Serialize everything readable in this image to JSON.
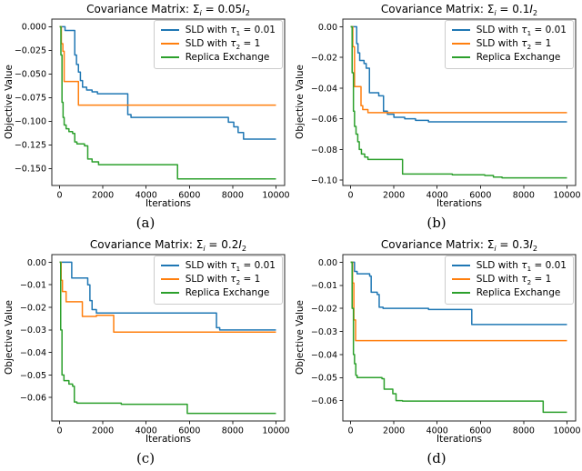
{
  "figure": {
    "xlabel": "Iterations",
    "ylabel": "Objective Value",
    "background": "#ffffff",
    "spine_color": "#262626",
    "legend": [
      {
        "key": "sld-tau1",
        "color": "#1f77b4",
        "name": "SLD with τ1 = 0.01",
        "parts": [
          {
            "t": "SLD with "
          },
          {
            "t": "τ",
            "it": true
          },
          {
            "t": "1",
            "sub": true
          },
          {
            "t": " = 0.01"
          }
        ]
      },
      {
        "key": "sld-tau2",
        "color": "#ff7f0e",
        "name": "SLD with τ2 = 1",
        "parts": [
          {
            "t": "SLD with "
          },
          {
            "t": "τ",
            "it": true
          },
          {
            "t": "2",
            "sub": true
          },
          {
            "t": " = 1"
          }
        ]
      },
      {
        "key": "replica-exchange",
        "color": "#2ca02c",
        "name": "Replica Exchange",
        "parts": [
          {
            "t": "Replica Exchange"
          }
        ]
      }
    ]
  },
  "chart_data": [
    {
      "type": "line",
      "caption": "(a)",
      "title_text": "Covariance Matrix: Σi = 0.05I2",
      "title_parts": [
        {
          "t": "Covariance Matrix: "
        },
        {
          "t": "Σ"
        },
        {
          "t": "i",
          "sub": true,
          "it": true
        },
        {
          "t": " = 0.05"
        },
        {
          "t": "I",
          "it": true
        },
        {
          "t": "2",
          "sub": true
        }
      ],
      "xlabel": "Iterations",
      "ylabel": "Objective Value",
      "legend_position": "upper right",
      "grid": false,
      "xlim": [
        -360,
        10400
      ],
      "ylim": [
        -0.168,
        0.008
      ],
      "x_end": 10000,
      "xticks": [
        {
          "v": 0,
          "label": "0"
        },
        {
          "v": 2000,
          "label": "2000"
        },
        {
          "v": 4000,
          "label": "4000"
        },
        {
          "v": 6000,
          "label": "6000"
        },
        {
          "v": 8000,
          "label": "8000"
        },
        {
          "v": 10000,
          "label": "10000"
        }
      ],
      "yticks": [
        {
          "v": 0,
          "label": "0.000"
        },
        {
          "v": -0.025,
          "label": "−0.025"
        },
        {
          "v": -0.05,
          "label": "−0.050"
        },
        {
          "v": -0.075,
          "label": "−0.075"
        },
        {
          "v": -0.1,
          "label": "−0.100"
        },
        {
          "v": -0.125,
          "label": "−0.125"
        },
        {
          "v": -0.15,
          "label": "−0.150"
        }
      ],
      "series": [
        {
          "key": "sld-tau1",
          "color": "#1f77b4",
          "points": [
            [
              0,
              0
            ],
            [
              250,
              -0.004
            ],
            [
              700,
              -0.03
            ],
            [
              780,
              -0.04
            ],
            [
              870,
              -0.048
            ],
            [
              960,
              -0.057
            ],
            [
              1060,
              -0.064
            ],
            [
              1250,
              -0.067
            ],
            [
              1500,
              -0.069
            ],
            [
              1750,
              -0.071
            ],
            [
              3150,
              -0.093
            ],
            [
              3300,
              -0.096
            ],
            [
              7800,
              -0.101
            ],
            [
              8050,
              -0.106
            ],
            [
              8250,
              -0.112
            ],
            [
              8500,
              -0.119
            ]
          ]
        },
        {
          "key": "sld-tau2",
          "color": "#ff7f0e",
          "points": [
            [
              0,
              0
            ],
            [
              80,
              -0.018
            ],
            [
              150,
              -0.026
            ],
            [
              210,
              -0.058
            ],
            [
              870,
              -0.083
            ]
          ]
        },
        {
          "key": "replica-exchange",
          "color": "#2ca02c",
          "points": [
            [
              0,
              0
            ],
            [
              60,
              -0.03
            ],
            [
              110,
              -0.08
            ],
            [
              160,
              -0.096
            ],
            [
              210,
              -0.104
            ],
            [
              300,
              -0.108
            ],
            [
              430,
              -0.111
            ],
            [
              600,
              -0.113
            ],
            [
              700,
              -0.122
            ],
            [
              800,
              -0.124
            ],
            [
              1150,
              -0.126
            ],
            [
              1300,
              -0.14
            ],
            [
              1500,
              -0.143
            ],
            [
              1800,
              -0.146
            ],
            [
              5450,
              -0.161
            ]
          ]
        }
      ]
    },
    {
      "type": "line",
      "caption": "(b)",
      "title_text": "Covariance Matrix: Σi = 0.1I2",
      "title_parts": [
        {
          "t": "Covariance Matrix: "
        },
        {
          "t": "Σ"
        },
        {
          "t": "i",
          "sub": true,
          "it": true
        },
        {
          "t": " = 0.1"
        },
        {
          "t": "I",
          "it": true
        },
        {
          "t": "2",
          "sub": true
        }
      ],
      "xlabel": "Iterations",
      "ylabel": "Objective Value",
      "legend_position": "upper right",
      "grid": false,
      "xlim": [
        -360,
        10400
      ],
      "ylim": [
        -0.1035,
        0.005
      ],
      "x_end": 10000,
      "xticks": [
        {
          "v": 0,
          "label": "0"
        },
        {
          "v": 2000,
          "label": "2000"
        },
        {
          "v": 4000,
          "label": "4000"
        },
        {
          "v": 6000,
          "label": "6000"
        },
        {
          "v": 8000,
          "label": "8000"
        },
        {
          "v": 10000,
          "label": "10000"
        }
      ],
      "yticks": [
        {
          "v": 0,
          "label": "0.00"
        },
        {
          "v": -0.02,
          "label": "−0.02"
        },
        {
          "v": -0.04,
          "label": "−0.04"
        },
        {
          "v": -0.06,
          "label": "−0.06"
        },
        {
          "v": -0.08,
          "label": "−0.08"
        },
        {
          "v": -0.1,
          "label": "−0.10"
        }
      ],
      "series": [
        {
          "key": "sld-tau1",
          "color": "#1f77b4",
          "points": [
            [
              0,
              0
            ],
            [
              280,
              -0.011
            ],
            [
              340,
              -0.017
            ],
            [
              420,
              -0.022
            ],
            [
              620,
              -0.024
            ],
            [
              720,
              -0.027
            ],
            [
              870,
              -0.043
            ],
            [
              1300,
              -0.045
            ],
            [
              1520,
              -0.055
            ],
            [
              1700,
              -0.057
            ],
            [
              2000,
              -0.059
            ],
            [
              2500,
              -0.06
            ],
            [
              3000,
              -0.061
            ],
            [
              3600,
              -0.062
            ]
          ]
        },
        {
          "key": "sld-tau2",
          "color": "#ff7f0e",
          "points": [
            [
              0,
              0
            ],
            [
              100,
              -0.013
            ],
            [
              180,
              -0.039
            ],
            [
              480,
              -0.0515
            ],
            [
              560,
              -0.054
            ],
            [
              800,
              -0.056
            ]
          ]
        },
        {
          "key": "replica-exchange",
          "color": "#2ca02c",
          "points": [
            [
              0,
              0
            ],
            [
              70,
              -0.03
            ],
            [
              130,
              -0.055
            ],
            [
              180,
              -0.065
            ],
            [
              250,
              -0.07
            ],
            [
              330,
              -0.075
            ],
            [
              400,
              -0.08
            ],
            [
              500,
              -0.083
            ],
            [
              650,
              -0.085
            ],
            [
              800,
              -0.0865
            ],
            [
              2400,
              -0.096
            ],
            [
              4700,
              -0.0965
            ],
            [
              6200,
              -0.097
            ],
            [
              6600,
              -0.098
            ],
            [
              7000,
              -0.0985
            ]
          ]
        }
      ]
    },
    {
      "type": "line",
      "caption": "(c)",
      "title_text": "Covariance Matrix: Σi = 0.2I2",
      "title_parts": [
        {
          "t": "Covariance Matrix: "
        },
        {
          "t": "Σ"
        },
        {
          "t": "i",
          "sub": true,
          "it": true
        },
        {
          "t": " = 0.2"
        },
        {
          "t": "I",
          "it": true
        },
        {
          "t": "2",
          "sub": true
        }
      ],
      "xlabel": "Iterations",
      "ylabel": "Objective Value",
      "legend_position": "upper right",
      "grid": false,
      "xlim": [
        -360,
        10400
      ],
      "ylim": [
        -0.0704,
        0.0034
      ],
      "x_end": 10000,
      "xticks": [
        {
          "v": 0,
          "label": "0"
        },
        {
          "v": 2000,
          "label": "2000"
        },
        {
          "v": 4000,
          "label": "4000"
        },
        {
          "v": 6000,
          "label": "6000"
        },
        {
          "v": 8000,
          "label": "8000"
        },
        {
          "v": 10000,
          "label": "10000"
        }
      ],
      "yticks": [
        {
          "v": 0,
          "label": "0.00"
        },
        {
          "v": -0.01,
          "label": "−0.01"
        },
        {
          "v": -0.02,
          "label": "−0.02"
        },
        {
          "v": -0.03,
          "label": "−0.03"
        },
        {
          "v": -0.04,
          "label": "−0.04"
        },
        {
          "v": -0.05,
          "label": "−0.05"
        },
        {
          "v": -0.06,
          "label": "−0.06"
        }
      ],
      "series": [
        {
          "key": "sld-tau1",
          "color": "#1f77b4",
          "points": [
            [
              0,
              0
            ],
            [
              560,
              -0.007
            ],
            [
              1300,
              -0.01
            ],
            [
              1400,
              -0.017
            ],
            [
              1500,
              -0.021
            ],
            [
              1700,
              -0.0225
            ],
            [
              7250,
              -0.029
            ],
            [
              7400,
              -0.03
            ]
          ]
        },
        {
          "key": "sld-tau2",
          "color": "#ff7f0e",
          "points": [
            [
              0,
              0
            ],
            [
              70,
              -0.008
            ],
            [
              130,
              -0.013
            ],
            [
              300,
              -0.0175
            ],
            [
              1050,
              -0.024
            ],
            [
              1700,
              -0.0235
            ],
            [
              2500,
              -0.031
            ]
          ]
        },
        {
          "key": "replica-exchange",
          "color": "#2ca02c",
          "points": [
            [
              0,
              0
            ],
            [
              50,
              -0.03
            ],
            [
              110,
              -0.05
            ],
            [
              200,
              -0.0525
            ],
            [
              430,
              -0.054
            ],
            [
              600,
              -0.055
            ],
            [
              680,
              -0.062
            ],
            [
              800,
              -0.0625
            ],
            [
              2850,
              -0.063
            ],
            [
              5900,
              -0.067
            ]
          ]
        }
      ]
    },
    {
      "type": "line",
      "caption": "(d)",
      "title_text": "Covariance Matrix: Σi = 0.3I2",
      "title_parts": [
        {
          "t": "Covariance Matrix: "
        },
        {
          "t": "Σ"
        },
        {
          "t": "i",
          "sub": true,
          "it": true
        },
        {
          "t": " = 0.3"
        },
        {
          "t": "I",
          "it": true
        },
        {
          "t": "2",
          "sub": true
        }
      ],
      "xlabel": "Iterations",
      "ylabel": "Objective Value",
      "legend_position": "upper right",
      "grid": false,
      "xlim": [
        -360,
        10400
      ],
      "ylim": [
        -0.0688,
        0.0033
      ],
      "x_end": 10000,
      "xticks": [
        {
          "v": 0,
          "label": "0"
        },
        {
          "v": 2000,
          "label": "2000"
        },
        {
          "v": 4000,
          "label": "4000"
        },
        {
          "v": 6000,
          "label": "6000"
        },
        {
          "v": 8000,
          "label": "8000"
        },
        {
          "v": 10000,
          "label": "10000"
        }
      ],
      "yticks": [
        {
          "v": 0,
          "label": "0.00"
        },
        {
          "v": -0.01,
          "label": "−0.01"
        },
        {
          "v": -0.02,
          "label": "−0.02"
        },
        {
          "v": -0.03,
          "label": "−0.03"
        },
        {
          "v": -0.04,
          "label": "−0.04"
        },
        {
          "v": -0.05,
          "label": "−0.05"
        },
        {
          "v": -0.06,
          "label": "−0.06"
        }
      ],
      "series": [
        {
          "key": "sld-tau1",
          "color": "#1f77b4",
          "points": [
            [
              0,
              0
            ],
            [
              180,
              -0.004
            ],
            [
              300,
              -0.005
            ],
            [
              880,
              -0.006
            ],
            [
              950,
              -0.013
            ],
            [
              1230,
              -0.014
            ],
            [
              1320,
              -0.0195
            ],
            [
              1500,
              -0.02
            ],
            [
              3600,
              -0.0205
            ],
            [
              5600,
              -0.027
            ]
          ]
        },
        {
          "key": "sld-tau2",
          "color": "#ff7f0e",
          "points": [
            [
              0,
              0
            ],
            [
              90,
              -0.009
            ],
            [
              150,
              -0.025
            ],
            [
              230,
              -0.034
            ]
          ]
        },
        {
          "key": "replica-exchange",
          "color": "#2ca02c",
          "points": [
            [
              0,
              0
            ],
            [
              70,
              -0.02
            ],
            [
              130,
              -0.04
            ],
            [
              180,
              -0.044
            ],
            [
              240,
              -0.049
            ],
            [
              300,
              -0.05
            ],
            [
              1450,
              -0.0505
            ],
            [
              1550,
              -0.055
            ],
            [
              1950,
              -0.057
            ],
            [
              2100,
              -0.06
            ],
            [
              2400,
              -0.0602
            ],
            [
              8900,
              -0.065
            ]
          ]
        }
      ]
    }
  ]
}
